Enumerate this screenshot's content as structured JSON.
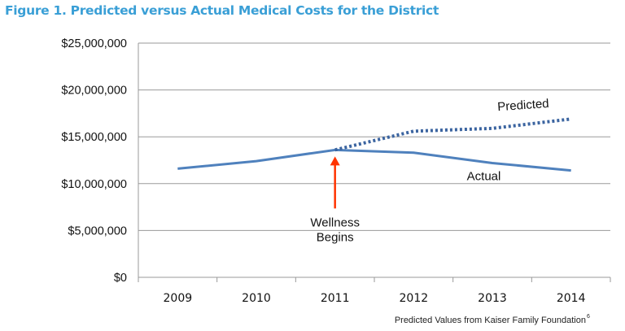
{
  "chart_data": {
    "type": "line",
    "title": "Figure 1. Predicted versus Actual Medical Costs for the District",
    "categories": [
      "2009",
      "2010",
      "2011",
      "2012",
      "2013",
      "2014"
    ],
    "ylim": [
      0,
      25000000
    ],
    "yticks": [
      0,
      5000000,
      10000000,
      15000000,
      20000000,
      25000000
    ],
    "ytick_labels": [
      "$0",
      "$5,000,000",
      "$10,000,000",
      "$15,000,000",
      "$20,000,000",
      "$25,000,000"
    ],
    "grid": true,
    "series": [
      {
        "name": "Actual",
        "style": "solid",
        "color": "#4f81bd",
        "values": [
          11600000,
          12400000,
          13600000,
          13300000,
          12200000,
          11400000
        ]
      },
      {
        "name": "Predicted",
        "style": "dotted",
        "color": "#3b64a0",
        "values": [
          null,
          null,
          13600000,
          15600000,
          15900000,
          16900000
        ]
      }
    ],
    "annotations": {
      "event_line1": "Wellness",
      "event_line2": "Begins",
      "event_category": "2011",
      "arrow_color": "#ff3300"
    },
    "source_note": "Predicted Values from Kaiser Family Foundation",
    "source_sup": "6"
  }
}
